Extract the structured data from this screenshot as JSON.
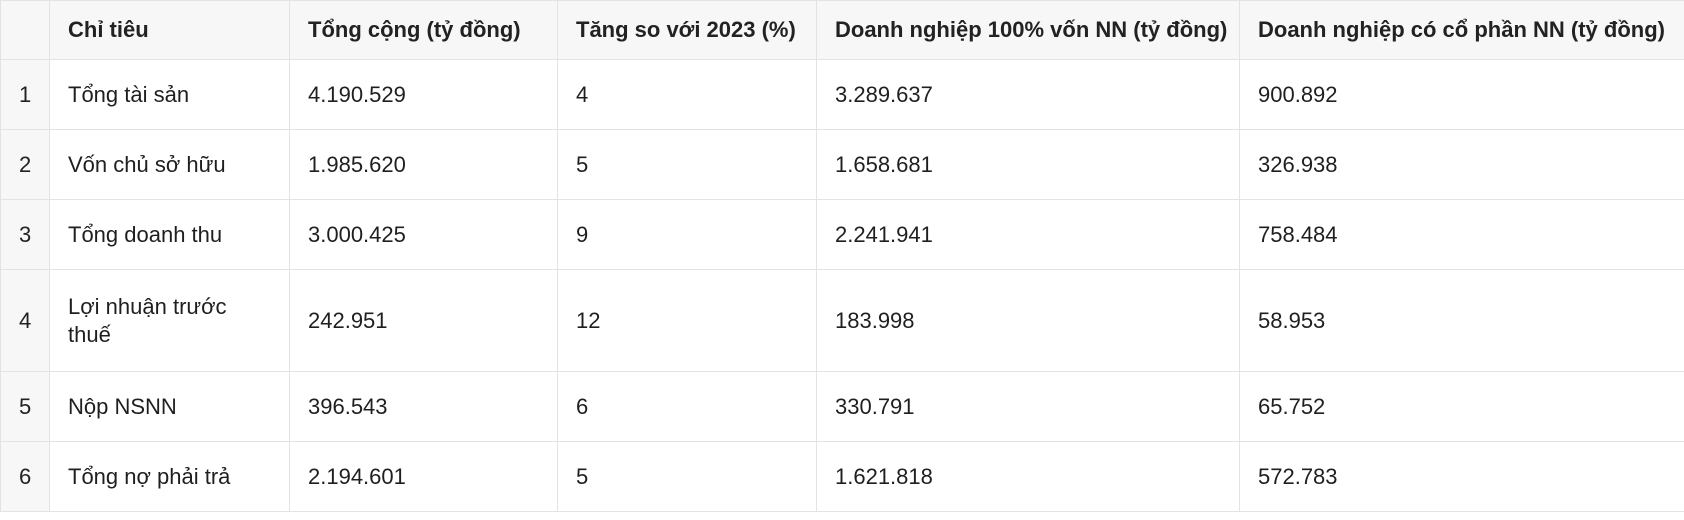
{
  "chart_data": {
    "type": "table",
    "columns": [
      "",
      "Chỉ tiêu",
      "Tổng cộng (tỷ đồng)",
      "Tăng so với 2023 (%)",
      "Doanh nghiệp 100% vốn NN (tỷ đồng)",
      "Doanh nghiệp có cổ phần NN (tỷ đồng)"
    ],
    "rows": [
      [
        "1",
        "Tổng tài sản",
        "4.190.529",
        "4",
        "3.289.637",
        "900.892"
      ],
      [
        "2",
        "Vốn chủ sở hữu",
        "1.985.620",
        "5",
        "1.658.681",
        "326.938"
      ],
      [
        "3",
        "Tổng doanh thu",
        "3.000.425",
        "9",
        "2.241.941",
        "758.484"
      ],
      [
        "4",
        "Lợi nhuận trước thuế",
        "242.951",
        "12",
        "183.998",
        "58.953"
      ],
      [
        "5",
        "Nộp NSNN",
        "396.543",
        "6",
        "330.791",
        "65.752"
      ],
      [
        "6",
        "Tổng nợ phải trả",
        "2.194.601",
        "5",
        "1.621.818",
        "572.783"
      ]
    ]
  },
  "colors": {
    "header_background": "#f7f7f7",
    "grid_line": "#e3e3e3",
    "text": "#1f1f1f"
  }
}
